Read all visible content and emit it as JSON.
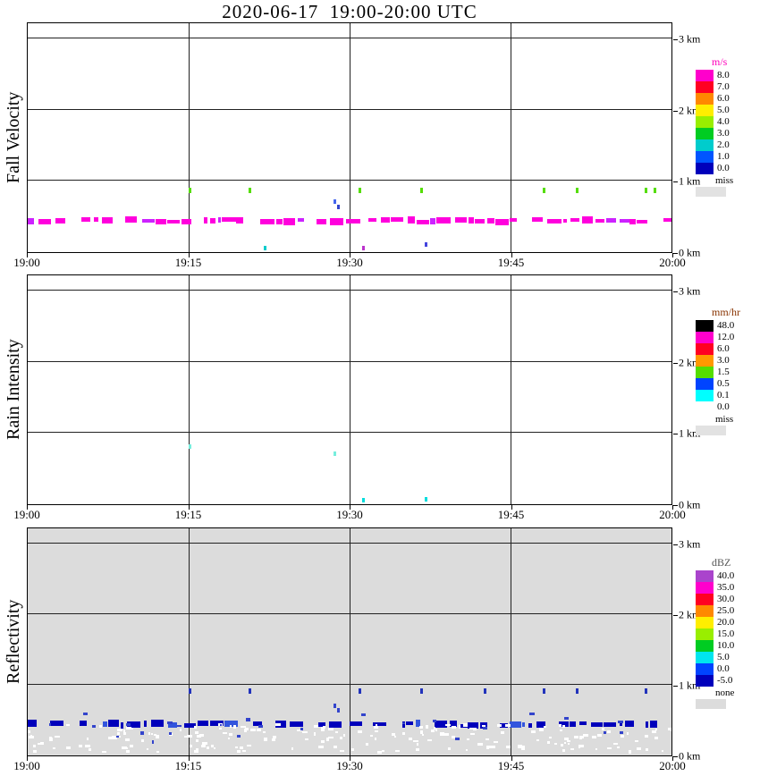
{
  "title": "2020-06-17  19:00-20:00 UTC",
  "x_ticks": [
    "19:00",
    "19:15",
    "19:30",
    "19:45",
    "20:00"
  ],
  "y_ticks": [
    "3 km",
    "2 km",
    "1 km",
    "0 km"
  ],
  "chart_data": {
    "type": "heatmap",
    "time_axis": {
      "start": "19:00",
      "end": "20:00",
      "minutes": 60
    },
    "height_axis_km": {
      "min": 0,
      "max": 3.24,
      "gridlines_km": [
        1,
        2,
        3
      ]
    },
    "panels": [
      {
        "axis_label": "Fall Velocity",
        "background": "#ffffff",
        "colorbar": {
          "units": "m/s",
          "units_color": "#ff00bb",
          "entries": [
            {
              "label": "8.0",
              "color": "#ff00cc"
            },
            {
              "label": "7.0",
              "color": "#ff0022"
            },
            {
              "label": "6.0",
              "color": "#ff8800"
            },
            {
              "label": "5.0",
              "color": "#ffee00"
            },
            {
              "label": "4.0",
              "color": "#99ee00"
            },
            {
              "label": "3.0",
              "color": "#00cc22"
            },
            {
              "label": "2.0",
              "color": "#00cccc"
            },
            {
              "label": "1.0",
              "color": "#0055ff"
            },
            {
              "label": "0.0",
              "color": "#0000bb"
            }
          ],
          "extra": {
            "label": "miss",
            "color": "#e2e2e2"
          }
        },
        "band": {
          "center_km": 0.44,
          "color": "#ff00dd",
          "alt_color": "#cc22ff",
          "seed": 11
        },
        "tick_row": {
          "height_km": 0.87,
          "color": "#55dd00",
          "times_min": [
            15.0,
            20.6,
            30.8,
            36.6,
            48.0,
            51.1,
            57.5,
            58.3
          ]
        },
        "speckles": [],
        "marks": [
          {
            "t_min": 28.5,
            "h_km": 0.7,
            "color": "#4466ee"
          },
          {
            "t_min": 28.8,
            "h_km": 0.63,
            "color": "#3344cc"
          },
          {
            "t_min": 22.0,
            "h_km": 0.05,
            "color": "#00cccc"
          },
          {
            "t_min": 31.2,
            "h_km": 0.05,
            "color": "#bb33cc"
          },
          {
            "t_min": 37.0,
            "h_km": 0.1,
            "color": "#4444dd"
          }
        ]
      },
      {
        "axis_label": "Rain Intensity",
        "background": "#ffffff",
        "colorbar": {
          "units": "mm/hr",
          "units_color": "#883300",
          "entries": [
            {
              "label": "48.0",
              "color": "#000000"
            },
            {
              "label": "12.0",
              "color": "#ff00cc"
            },
            {
              "label": "6.0",
              "color": "#ff0022"
            },
            {
              "label": "3.0",
              "color": "#ff9900"
            },
            {
              "label": "1.5",
              "color": "#55dd00"
            },
            {
              "label": "0.5",
              "color": "#0044ff"
            },
            {
              "label": "0.1",
              "color": "#00ffff"
            },
            {
              "label": "0.0",
              "color": "#ffffff"
            }
          ],
          "extra": {
            "label": "miss",
            "color": "#e2e2e2"
          }
        },
        "band": null,
        "tick_row": null,
        "speckles": [],
        "marks": [
          {
            "t_min": 15.0,
            "h_km": 0.8,
            "color": "#77eedd"
          },
          {
            "t_min": 28.5,
            "h_km": 0.7,
            "color": "#77eedd"
          },
          {
            "t_min": 31.2,
            "h_km": 0.05,
            "color": "#00dddd"
          },
          {
            "t_min": 37.0,
            "h_km": 0.06,
            "color": "#00dddd"
          }
        ]
      },
      {
        "axis_label": "Reflectivity",
        "background": "#dcdcdc",
        "colorbar": {
          "units": "dBZ",
          "units_color": "#555555",
          "entries": [
            {
              "label": "40.0",
              "color": "#aa44cc"
            },
            {
              "label": "35.0",
              "color": "#ff00cc"
            },
            {
              "label": "30.0",
              "color": "#ff0022"
            },
            {
              "label": "25.0",
              "color": "#ff8800"
            },
            {
              "label": "20.0",
              "color": "#ffee00"
            },
            {
              "label": "15.0",
              "color": "#99ee00"
            },
            {
              "label": "10.0",
              "color": "#00cc22"
            },
            {
              "label": "5.0",
              "color": "#00e5ee"
            },
            {
              "label": "0.0",
              "color": "#0044ff"
            },
            {
              "label": "-5.0",
              "color": "#0000bb"
            }
          ],
          "extra": {
            "label": "none",
            "color": "#dcdcdc"
          }
        },
        "band": {
          "center_km": 0.44,
          "color": "#0000bb",
          "alt_color": "#3355dd",
          "seed": 23
        },
        "tick_row": {
          "height_km": 0.91,
          "color": "#2233bb",
          "times_min": [
            15.0,
            20.6,
            30.8,
            36.6,
            42.5,
            48.0,
            51.1,
            57.5
          ]
        },
        "speckles": [
          {
            "count": 200,
            "h_min_km": 0.03,
            "h_max_km": 0.42,
            "color": "#ffffff",
            "seed": 5
          },
          {
            "count": 25,
            "h_min_km": 0.15,
            "h_max_km": 0.58,
            "color": "#3344cc",
            "seed": 9
          }
        ],
        "marks": [
          {
            "t_min": 28.5,
            "h_km": 0.7,
            "color": "#3344cc"
          },
          {
            "t_min": 28.8,
            "h_km": 0.63,
            "color": "#3344cc"
          }
        ]
      }
    ]
  }
}
